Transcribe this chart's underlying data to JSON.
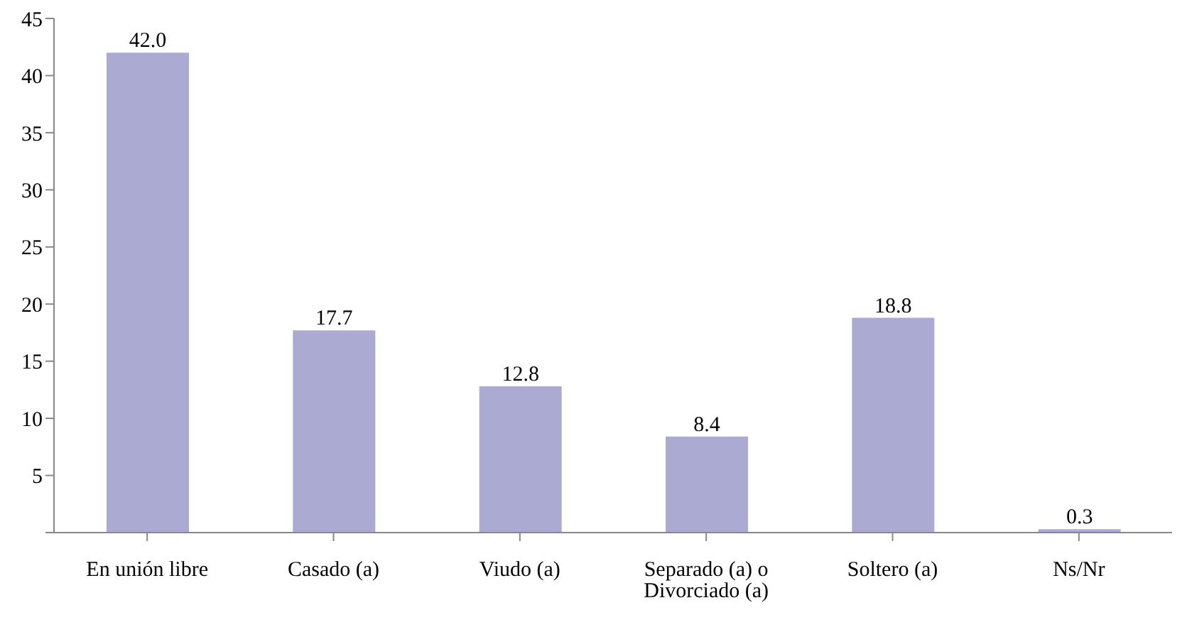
{
  "chart_data": {
    "type": "bar",
    "categories": [
      "En unión libre",
      "Casado (a)",
      "Viudo (a)",
      "Separado (a) o Divorciado (a)",
      "Soltero (a)",
      "Ns/Nr"
    ],
    "values": [
      42.0,
      17.7,
      12.8,
      8.4,
      18.8,
      0.3
    ],
    "color": "#aaaad2",
    "data_labels": true,
    "value_labels": [
      "42.0",
      "17.7",
      "12.8",
      "8.4",
      "18.8",
      "0.3"
    ],
    "ylim": [
      0,
      45
    ],
    "yticks": [
      {
        "value": 0,
        "label": null
      },
      5,
      10,
      15,
      20,
      25,
      30,
      35,
      40,
      45
    ],
    "grid": false,
    "legend": false
  }
}
